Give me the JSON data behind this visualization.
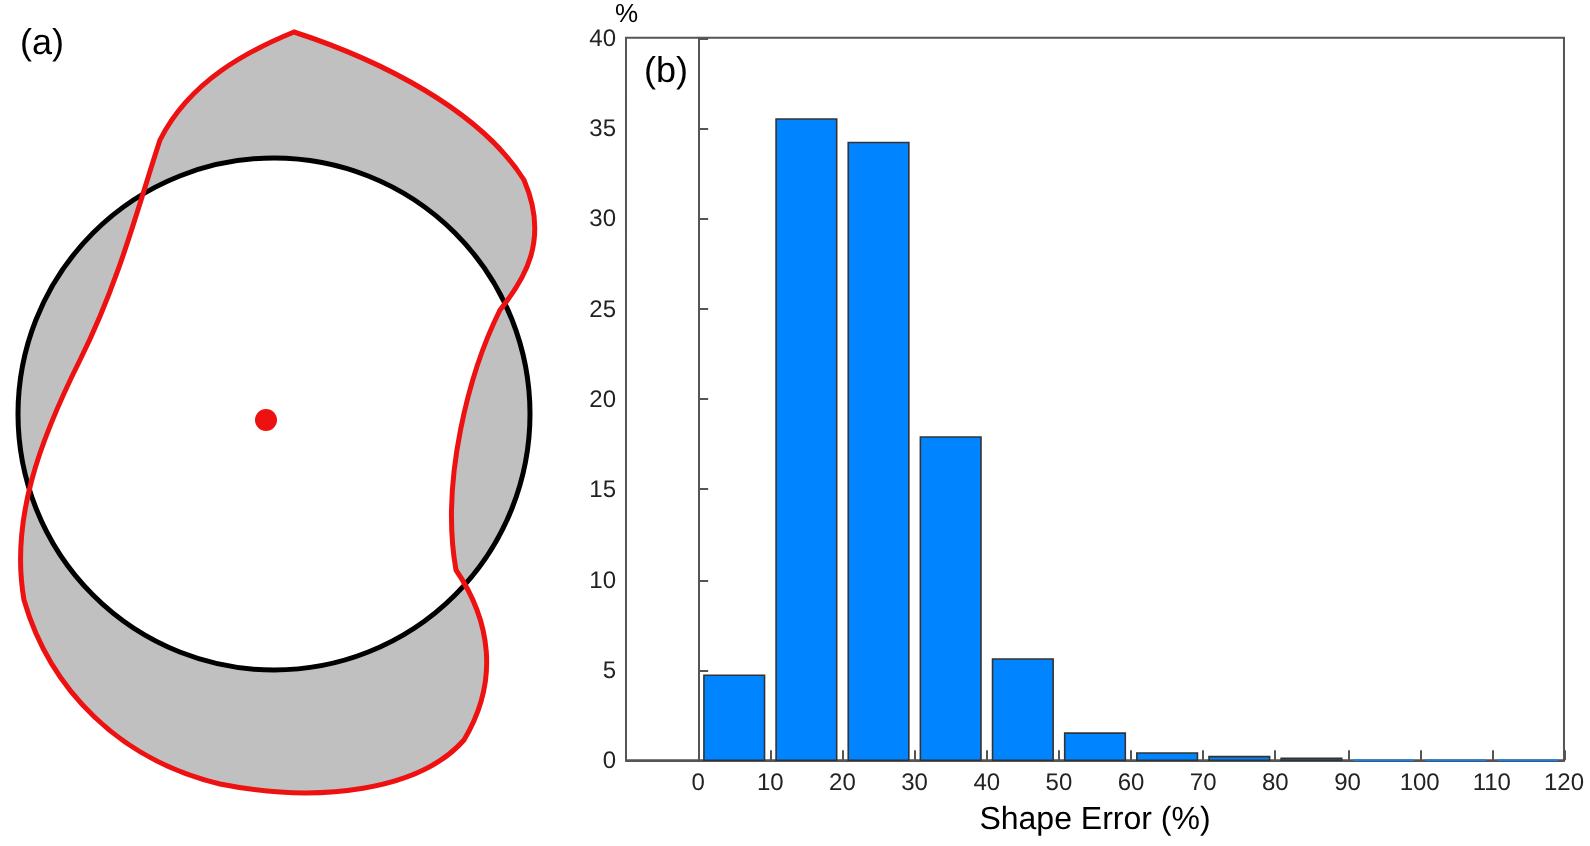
{
  "chart_data": {
    "type": "histogram",
    "xlabel": "Shape Error (%)",
    "ylabel": "%",
    "annotations": [
      "(a)",
      "(b)"
    ],
    "bins": [
      0,
      10,
      20,
      30,
      40,
      50,
      60,
      70,
      80,
      90,
      100,
      110,
      120
    ],
    "values": [
      4.7,
      35.5,
      34.2,
      17.9,
      5.6,
      1.5,
      0.4,
      0.2,
      0.1,
      0,
      0,
      0
    ],
    "color": "#0084ff",
    "xlim": [
      -10,
      120
    ],
    "xticks": [
      0,
      10,
      20,
      30,
      40,
      50,
      60,
      70,
      80,
      90,
      100,
      110,
      120
    ],
    "ylim": [
      0,
      40
    ],
    "yticks": [
      0,
      5,
      10,
      15,
      20,
      25,
      30,
      35,
      40
    ]
  }
}
